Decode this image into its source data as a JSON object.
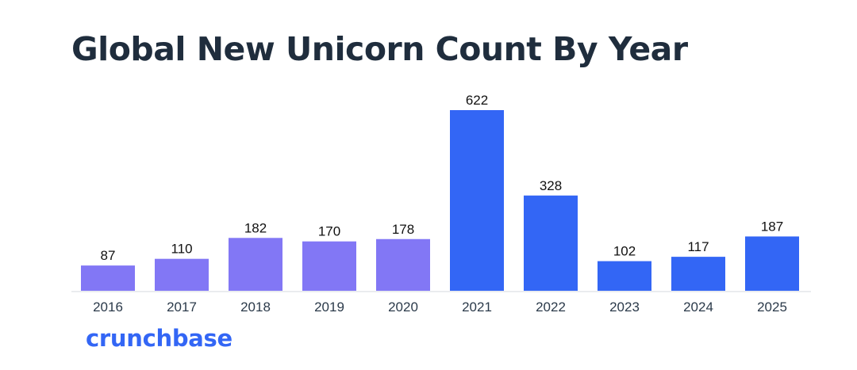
{
  "chart_data": {
    "type": "bar",
    "title": "Global New Unicorn Count By Year",
    "xlabel": "",
    "ylabel": "",
    "categories": [
      "2016",
      "2017",
      "2018",
      "2019",
      "2020",
      "2021",
      "2022",
      "2023",
      "2024",
      "2025"
    ],
    "values": [
      87,
      110,
      182,
      170,
      178,
      622,
      328,
      102,
      117,
      187
    ],
    "bar_colors": [
      "#8277f5",
      "#8277f5",
      "#8277f5",
      "#8277f5",
      "#8277f5",
      "#3366f5",
      "#3366f5",
      "#3366f5",
      "#3366f5",
      "#3366f5"
    ],
    "ylim": [
      0,
      622
    ],
    "grid": false,
    "data_labels": true
  },
  "branding": {
    "logo_text": "crunchbase",
    "logo_color": "#3366f5"
  }
}
